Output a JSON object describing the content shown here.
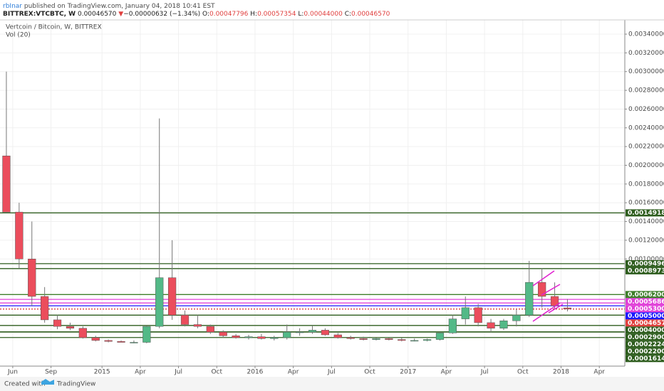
{
  "header": {
    "publisher": "rbInar",
    "published": "published on TradingView.com, January 04, 2018 10:41 EST",
    "symbol": "BITTREX:VTCBTC, W",
    "last": "0.00046570",
    "arrow": "▼",
    "change": "−0.00000632 (−1.34%)",
    "ohlc": [
      {
        "key": "O:",
        "value": "0.00047796"
      },
      {
        "key": "H:",
        "value": "0.00057354"
      },
      {
        "key": "L:",
        "value": "0.00044000"
      },
      {
        "key": "C:",
        "value": "0.00046570"
      }
    ]
  },
  "chart_data": {
    "type": "candlestick",
    "title": "Vertcoin / Bitcoin, W, BITTREX",
    "indicator": "Vol (20)",
    "up_color": "#53b987",
    "down_color": "#eb4d5c",
    "x": [
      "2014-05",
      "2014-06",
      "2014-07",
      "2014-08",
      "2014-09",
      "2014-10",
      "2014-11",
      "2014-12",
      "2015-01",
      "2015-02",
      "2015-03",
      "2015-04",
      "2015-05",
      "2015-06",
      "2015-07",
      "2015-08",
      "2015-09",
      "2015-10",
      "2015-11",
      "2015-12",
      "2016-01",
      "2016-02",
      "2016-03",
      "2016-04",
      "2016-05",
      "2016-06",
      "2016-07",
      "2016-08",
      "2016-09",
      "2016-10",
      "2016-11",
      "2016-12",
      "2017-01",
      "2017-02",
      "2017-03",
      "2017-04",
      "2017-05",
      "2017-06",
      "2017-07",
      "2017-08",
      "2017-09",
      "2017-10",
      "2017-11",
      "2017-12",
      "2018-01"
    ],
    "open": [
      0.0021,
      0.0015,
      0.001,
      0.0006,
      0.00035,
      0.00028,
      0.00026,
      0.00016,
      0.00013,
      0.00012,
      0.00011,
      0.00011,
      0.00028,
      0.0008,
      0.0004,
      0.0003,
      0.00028,
      0.00022,
      0.00018,
      0.00016,
      0.00017,
      0.00015,
      0.00016,
      0.00022,
      0.00022,
      0.00024,
      0.00019,
      0.00016,
      0.00015,
      0.00014,
      0.00015,
      0.00014,
      0.00013,
      0.00013,
      0.00014,
      0.00021,
      0.00036,
      0.00048,
      0.00032,
      0.00026,
      0.00034,
      0.0004,
      0.00075,
      0.0006,
      0.00047796
    ],
    "high": [
      0.003,
      0.0016,
      0.0014,
      0.0007,
      0.0004,
      0.00032,
      0.00028,
      0.00018,
      0.00014,
      0.00013,
      0.00013,
      0.00029,
      0.0025,
      0.0012,
      0.00045,
      0.0004,
      0.0003,
      0.00024,
      0.0002,
      0.00019,
      0.0002,
      0.00018,
      0.0003,
      0.00026,
      0.00029,
      0.00026,
      0.00021,
      0.00018,
      0.00017,
      0.00016,
      0.00016,
      0.00016,
      0.00015,
      0.00015,
      0.00022,
      0.0004,
      0.0006,
      0.00052,
      0.00036,
      0.00036,
      0.00046,
      0.00098,
      0.0009,
      0.00075,
      0.00057354
    ],
    "low": [
      0.0015,
      0.0009,
      0.0005,
      0.00032,
      0.00025,
      0.00024,
      0.00015,
      0.00012,
      0.00011,
      0.00011,
      0.0001,
      0.0001,
      0.00026,
      0.00035,
      0.00028,
      0.00026,
      0.0002,
      0.00016,
      0.00015,
      0.00014,
      0.00014,
      0.00013,
      0.00014,
      0.00018,
      0.0002,
      0.00018,
      0.00015,
      0.00014,
      0.00013,
      0.00013,
      0.00013,
      0.00012,
      0.00012,
      0.00012,
      0.00013,
      0.0002,
      0.0003,
      0.00028,
      0.00022,
      0.00024,
      0.00028,
      0.00038,
      0.00048,
      0.00046,
      0.00044
    ],
    "close": [
      0.0015,
      0.001,
      0.0006,
      0.00035,
      0.00028,
      0.00026,
      0.00016,
      0.00013,
      0.00012,
      0.00011,
      0.00011,
      0.00028,
      0.0008,
      0.0004,
      0.0003,
      0.00028,
      0.00022,
      0.00018,
      0.00016,
      0.00017,
      0.00015,
      0.00016,
      0.00022,
      0.00022,
      0.00024,
      0.00019,
      0.00016,
      0.00015,
      0.00014,
      0.00015,
      0.00014,
      0.00013,
      0.00013,
      0.00014,
      0.00021,
      0.00036,
      0.00048,
      0.00032,
      0.00026,
      0.00034,
      0.0004,
      0.00075,
      0.0006,
      0.0005,
      0.0004657
    ],
    "xlim": [
      "2014-05",
      "2018-06"
    ],
    "xticks": [
      {
        "value": "2014-06",
        "label": "Jun"
      },
      {
        "value": "2014-09",
        "label": "Sep"
      },
      {
        "value": "2015-01",
        "label": "2015"
      },
      {
        "value": "2015-04",
        "label": "Apr"
      },
      {
        "value": "2015-07",
        "label": "Jul"
      },
      {
        "value": "2015-10",
        "label": "Oct"
      },
      {
        "value": "2016-01",
        "label": "2016"
      },
      {
        "value": "2016-04",
        "label": "Apr"
      },
      {
        "value": "2016-07",
        "label": "Jul"
      },
      {
        "value": "2016-10",
        "label": "Oct"
      },
      {
        "value": "2017-01",
        "label": "2017"
      },
      {
        "value": "2017-04",
        "label": "Apr"
      },
      {
        "value": "2017-07",
        "label": "Jul"
      },
      {
        "value": "2017-10",
        "label": "Oct"
      },
      {
        "value": "2018-01",
        "label": "2018"
      },
      {
        "value": "2018-04",
        "label": "Apr"
      }
    ],
    "ylim": [
      -0.000144,
      0.003552
    ],
    "yticks": [
      {
        "value": 0.001,
        "label": "0.00100000"
      },
      {
        "value": 0.0012,
        "label": "0.00120000"
      },
      {
        "value": 0.0014,
        "label": "0.00140000"
      },
      {
        "value": 0.0016,
        "label": "0.00160000"
      },
      {
        "value": 0.0018,
        "label": "0.00180000"
      },
      {
        "value": 0.002,
        "label": "0.00200000"
      },
      {
        "value": 0.0022,
        "label": "0.00220000"
      },
      {
        "value": 0.0024,
        "label": "0.00240000"
      },
      {
        "value": 0.0026,
        "label": "0.00260000"
      },
      {
        "value": 0.0028,
        "label": "0.00280000"
      },
      {
        "value": 0.003,
        "label": "0.00300000"
      },
      {
        "value": 0.0032,
        "label": "0.00320000"
      },
      {
        "value": 0.0034,
        "label": "0.00340000"
      }
    ],
    "grid": true,
    "levels": [
      {
        "value": 0.00149187,
        "label": "0.00149187",
        "color": "#2e5d1e"
      },
      {
        "value": 0.0009496,
        "label": "0.00094960",
        "color": "#2e5d1e"
      },
      {
        "value": 0.00089733,
        "label": "0.00089733",
        "color": "#2e5d1e"
      },
      {
        "value": 0.00062,
        "label": "0.00062000",
        "color": "#3f7f2a"
      },
      {
        "value": 0.00056865,
        "label": "0.00056865",
        "color": "#e040d8"
      },
      {
        "value": 0.00053,
        "label": "0.00053000",
        "color": "#e040d8"
      },
      {
        "value": 0.0005,
        "label": "0.00050000",
        "color": "#1a1aff"
      },
      {
        "value": 0.0004657,
        "label": "0.00046570",
        "color": "#e0403f"
      },
      {
        "value": 0.0004,
        "label": "0.00040000",
        "color": "#2e5d1e"
      },
      {
        "value": 0.00029,
        "label": "0.00029000",
        "color": "#2e5d1e"
      },
      {
        "value": 0.0002224,
        "label": "0.00022240",
        "color": "#2e5d1e"
      },
      {
        "value": 0.00022,
        "label": "0.00022000",
        "color": "#2e5d1e"
      },
      {
        "value": 0.00016146,
        "label": "0.00016146",
        "color": "#2e5d1e"
      }
    ]
  },
  "footer": {
    "created": "Created with",
    "brand": "TradingView"
  }
}
